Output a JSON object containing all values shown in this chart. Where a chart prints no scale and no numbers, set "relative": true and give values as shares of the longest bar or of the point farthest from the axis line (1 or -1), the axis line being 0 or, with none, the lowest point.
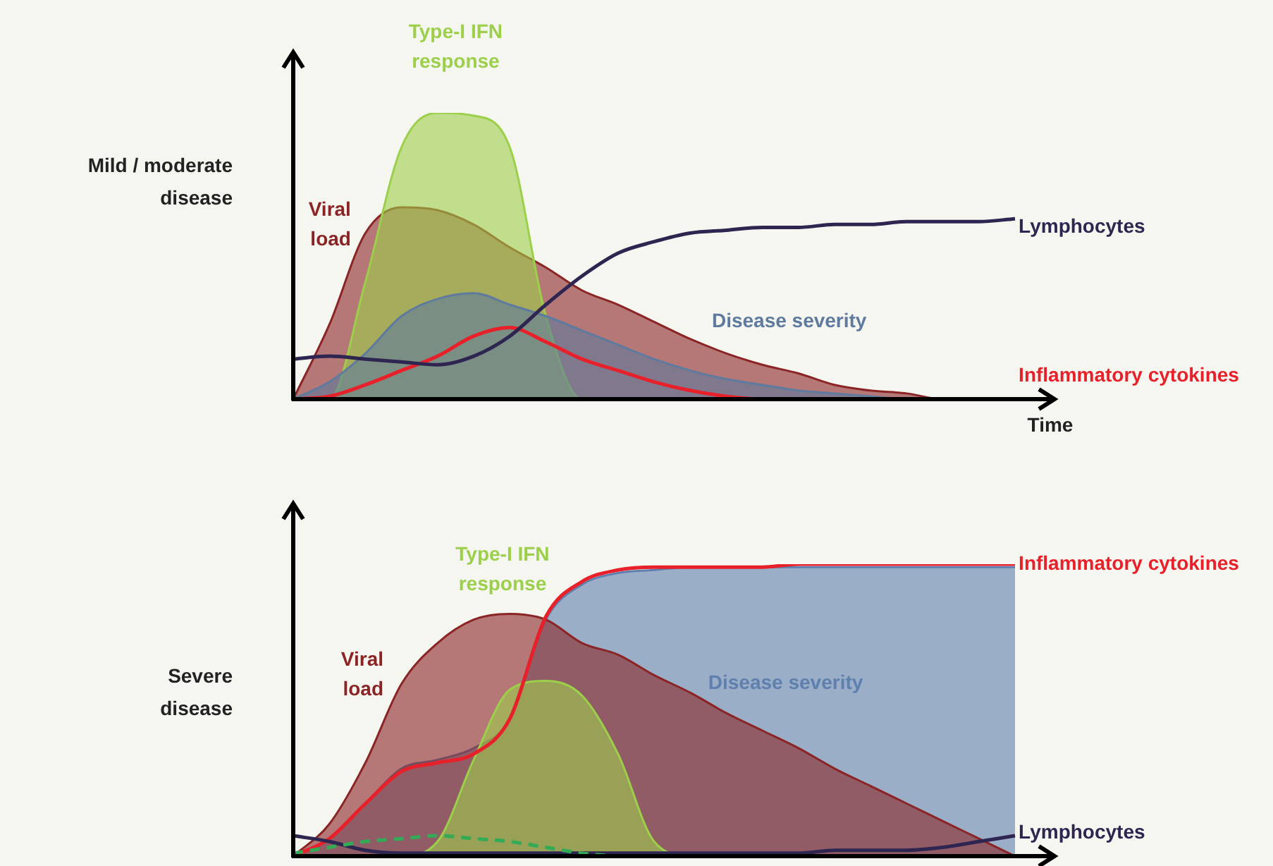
{
  "chart_data": [
    {
      "type": "area",
      "ylabel": "Mild / moderate disease",
      "xlabel": "Time",
      "relative": true,
      "legend": false,
      "marker": "none",
      "categories": [
        null,
        null,
        null,
        null,
        null,
        null,
        null,
        null,
        null,
        null,
        null,
        null,
        null,
        null,
        null,
        null,
        null,
        null,
        null,
        null,
        null
      ],
      "series": [
        {
          "name": "Viral load",
          "color": "#8b2525",
          "values": [
            0,
            0.26,
            0.58,
            0.67,
            0.66,
            0.61,
            0.53,
            0.46,
            0.38,
            0.33,
            0.27,
            0.21,
            0.16,
            0.12,
            0.09,
            0.05,
            0.03,
            0.02,
            0,
            0,
            0
          ]
        },
        {
          "name": "Type-I IFN response",
          "color": "#9ccf4a",
          "values": [
            0,
            0,
            0.41,
            0.88,
            1,
            0.99,
            0.88,
            0.29,
            0,
            0,
            0,
            0,
            0,
            0,
            0,
            0,
            0,
            0,
            0,
            0,
            0
          ]
        },
        {
          "name": "Disease severity",
          "color": "#5e7a9e",
          "values": [
            0,
            0.06,
            0.16,
            0.29,
            0.35,
            0.37,
            0.33,
            0.29,
            0.24,
            0.19,
            0.14,
            0.1,
            0.07,
            0.05,
            0.03,
            0.02,
            0.01,
            0,
            0,
            0,
            0
          ]
        },
        {
          "name": "Inflammatory cytokines",
          "type": "line",
          "color": "#e8202a",
          "values": [
            0,
            0.01,
            0.05,
            0.1,
            0.15,
            0.22,
            0.25,
            0.2,
            0.14,
            0.1,
            0.06,
            0.03,
            0.01,
            0,
            0,
            null,
            null,
            null,
            null,
            null,
            null
          ]
        },
        {
          "name": "Lymphocytes",
          "type": "line",
          "color": "#2e2550",
          "values": [
            0.14,
            0.15,
            0.14,
            0.13,
            0.12,
            0.15,
            0.22,
            0.33,
            0.43,
            0.51,
            0.55,
            0.58,
            0.59,
            0.6,
            0.6,
            0.61,
            0.61,
            0.62,
            0.62,
            0.62,
            0.63
          ]
        }
      ]
    },
    {
      "type": "area",
      "ylabel": "Severe disease",
      "relative": true,
      "legend": false,
      "marker": "none",
      "categories": [
        null,
        null,
        null,
        null,
        null,
        null,
        null,
        null,
        null,
        null,
        null,
        null,
        null,
        null,
        null,
        null,
        null,
        null,
        null,
        null,
        null
      ],
      "series": [
        {
          "name": "Disease severity",
          "color": "#5f7fae",
          "values": [
            0,
            0.06,
            0.18,
            0.3,
            0.33,
            0.37,
            0.47,
            0.81,
            0.93,
            0.97,
            0.98,
            0.99,
            0.99,
            0.99,
            0.99,
            0.99,
            0.99,
            0.99,
            0.99,
            0.99,
            0.99
          ]
        },
        {
          "name": "Viral load",
          "color": "#8b2525",
          "values": [
            0,
            0.11,
            0.32,
            0.59,
            0.73,
            0.81,
            0.83,
            0.81,
            0.73,
            0.69,
            0.62,
            0.56,
            0.49,
            0.43,
            0.37,
            0.3,
            0.24,
            0.18,
            0.12,
            0.06,
            0
          ]
        },
        {
          "name": "Type-I IFN response",
          "color": "#9ccf4a",
          "values": [
            0,
            0,
            0,
            0,
            0.05,
            0.33,
            0.57,
            0.6,
            0.55,
            0.35,
            0.05,
            0,
            0,
            0,
            0,
            0,
            0,
            0,
            0,
            0,
            0
          ]
        },
        {
          "name": "Inflammatory cytokines",
          "type": "line",
          "color": "#e8202a",
          "values": [
            0,
            0.06,
            0.18,
            0.29,
            0.32,
            0.35,
            0.47,
            0.82,
            0.94,
            0.98,
            0.99,
            0.99,
            0.99,
            0.99,
            1,
            1,
            1,
            1,
            1,
            1,
            1
          ]
        },
        {
          "name": "Lymphocytes",
          "type": "line",
          "color": "#2e2550",
          "values": [
            0.07,
            0.05,
            0.02,
            0.01,
            0.01,
            0.01,
            0.01,
            0.01,
            0.01,
            0.01,
            0.01,
            0.01,
            0.01,
            0.01,
            0.01,
            0.02,
            0.02,
            0.02,
            0.03,
            0.05,
            0.07
          ]
        },
        {
          "type": "line",
          "color": "#33aa55",
          "line_style": "dashed",
          "values": [
            0.01,
            0.03,
            0.05,
            0.06,
            0.07,
            0.06,
            0.05,
            0.03,
            0.01,
            0,
            null,
            null,
            null,
            null,
            null,
            null,
            null,
            null,
            null,
            null,
            null
          ]
        }
      ]
    }
  ]
}
